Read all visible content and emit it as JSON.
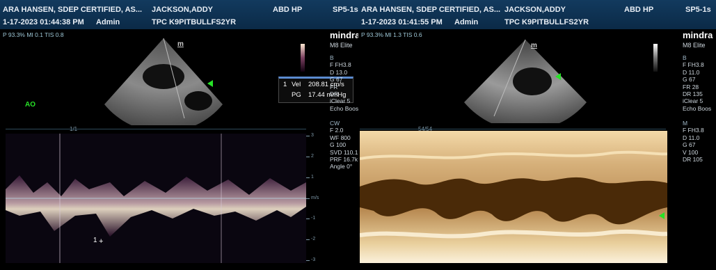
{
  "left": {
    "header": {
      "operator": "ARA HANSEN, SDEP CERTIFIED, AS...",
      "patient": "JACKSON,ADDY",
      "preset": "ABD HP",
      "probe": "SP5-1s",
      "datetime": "1-17-2023 01:44:38 PM",
      "user": "Admin",
      "patient_id": "TPC K9PITBULLFS2YR"
    },
    "params_line": "P 93.3% MI 0.1 TIS 0.8",
    "brand": "mindra",
    "model": "M8 Elite",
    "sector_label": "m",
    "region_label": "AO",
    "cursor_label": "1",
    "measurement": {
      "index": "1",
      "vel_label": "Vel",
      "vel_value": "208.81 cm/s",
      "pg_label": "PG",
      "pg_value": "17.44 mmHg"
    },
    "side_params_b": [
      "B",
      "F FH3.8",
      "D 13.0",
      "G 67",
      "FR",
      "DR",
      "iClear 5",
      "Echo Boos"
    ],
    "side_params_cw": [
      "CW",
      "F 2.0",
      "WF 800",
      "G 100",
      "SVD 110.1",
      "PRF 16.7k",
      "Angle 0°"
    ],
    "scale_labels": [
      "3",
      "2",
      "1",
      "m/s",
      "-1",
      "-2",
      "-3"
    ],
    "time_label": "1/1"
  },
  "right": {
    "header": {
      "operator": "ARA HANSEN, SDEP CERTIFIED, AS...",
      "patient": "JACKSON,ADDY",
      "preset": "ABD HP",
      "probe": "SP5-1s",
      "datetime": "1-17-2023 01:41:55 PM",
      "user": "Admin",
      "patient_id": "TPC K9PITBULLFS2YR"
    },
    "params_line": "P 93.3% MI 1.3 TIS 0.6",
    "brand": "mindra",
    "model": "M8 Elite",
    "sector_label": "m",
    "side_params_b": [
      "B",
      "F FH3.8",
      "D 11.0",
      "G 67",
      "FR 28",
      "DR 135",
      "iClear 5",
      "Echo Boos"
    ],
    "side_params_m": [
      "M",
      "F FH3.8",
      "D 11.0",
      "G 67",
      "V 100",
      "DR 105"
    ],
    "time_label": "54/54"
  },
  "colors": {
    "header": "#0b2a47",
    "param_text": "#9ec7d6",
    "green_marker": "#27e227",
    "measure_accent": "#5b8bd0"
  }
}
